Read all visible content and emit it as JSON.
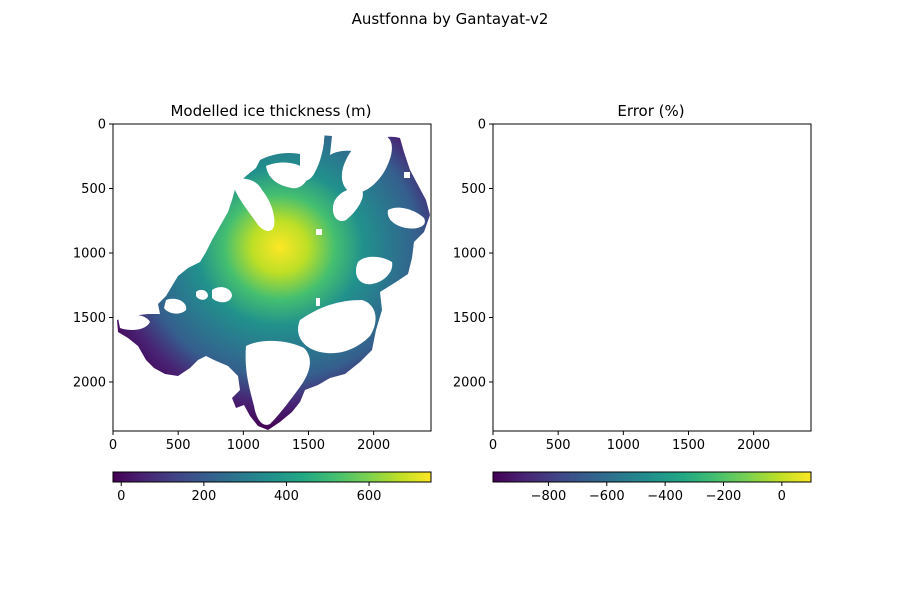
{
  "figure": {
    "title": "Austfonna by Gantayat-v2"
  },
  "colors": {
    "viridis": [
      "#440154",
      "#482475",
      "#414487",
      "#355f8d",
      "#2a788e",
      "#21918c",
      "#22a884",
      "#44bf70",
      "#7ad151",
      "#bddf26",
      "#fde725"
    ],
    "ice_mask": "#ffffff",
    "axes": "#000000"
  },
  "chart_data": [
    {
      "type": "heatmap",
      "title": "Modelled ice thickness (m)",
      "xlabel": "",
      "ylabel": "",
      "xlim": [
        0,
        2440
      ],
      "ylim": [
        2380,
        0
      ],
      "x_ticks": [
        "0",
        "500",
        "1000",
        "1500",
        "2000"
      ],
      "x_tick_values": [
        0,
        500,
        1000,
        1500,
        2000
      ],
      "y_ticks": [
        "0",
        "500",
        "1000",
        "1500",
        "2000"
      ],
      "y_tick_values": [
        0,
        500,
        1000,
        1500,
        2000
      ],
      "colormap": "viridis",
      "colorbar": {
        "orientation": "horizontal",
        "range": [
          -20,
          750
        ],
        "ticks": [
          "0",
          "200",
          "400",
          "600"
        ],
        "tick_values": [
          0,
          200,
          400,
          600
        ]
      },
      "grid": false
    },
    {
      "type": "heatmap",
      "title": "Error (%)",
      "xlabel": "",
      "ylabel": "",
      "xlim": [
        0,
        2440
      ],
      "ylim": [
        2380,
        0
      ],
      "x_ticks": [
        "0",
        "500",
        "1000",
        "1500",
        "2000"
      ],
      "x_tick_values": [
        0,
        500,
        1000,
        1500,
        2000
      ],
      "y_ticks": [
        "0",
        "500",
        "1000",
        "1500",
        "2000"
      ],
      "y_tick_values": [
        0,
        500,
        1000,
        1500,
        2000
      ],
      "colormap": "viridis",
      "colorbar": {
        "orientation": "horizontal",
        "range": [
          -990,
          100
        ],
        "ticks": [
          "−800",
          "−600",
          "−400",
          "−200",
          "0"
        ],
        "tick_values": [
          -800,
          -600,
          -400,
          -200,
          0
        ]
      },
      "grid": false,
      "empty": true
    }
  ]
}
